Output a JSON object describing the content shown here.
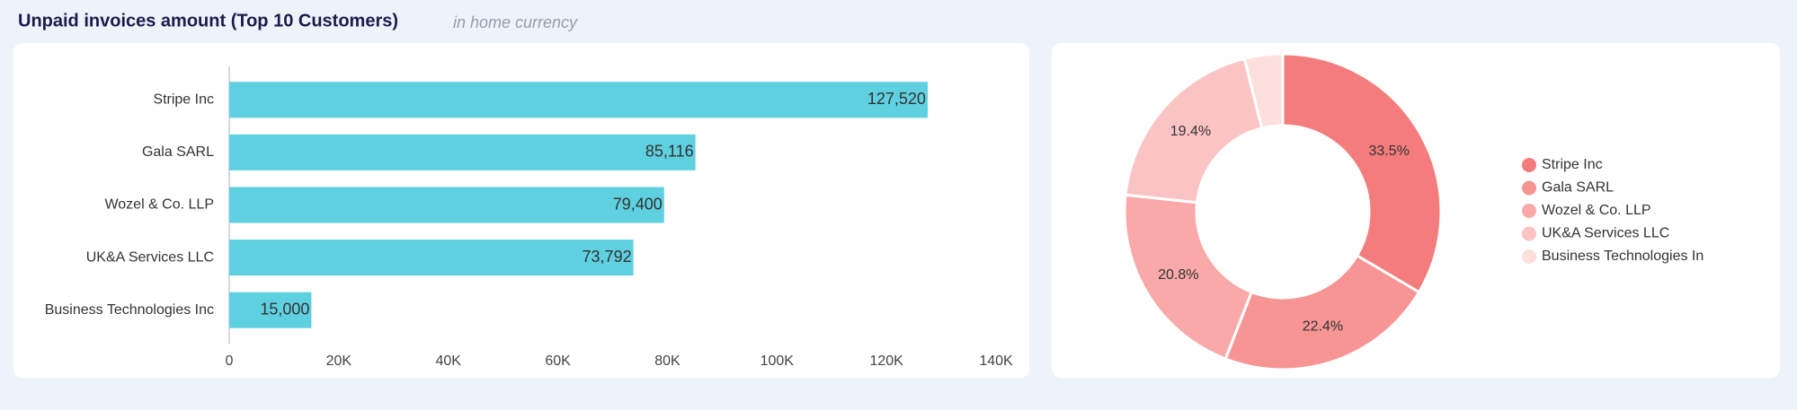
{
  "header": {
    "title": "Unpaid invoices amount (Top 10 Customers)",
    "subtitle": "in home currency"
  },
  "chart_data": [
    {
      "type": "bar",
      "orientation": "horizontal",
      "categories": [
        "Stripe Inc",
        "Gala SARL",
        "Wozel & Co. LLP",
        "UK&A Services LLC",
        "Business Technologies Inc"
      ],
      "values": [
        127520,
        85116,
        79400,
        73792,
        15000
      ],
      "value_labels": [
        "127,520",
        "85,116",
        "79,400",
        "73,792",
        "15,000"
      ],
      "color": "#5fd0df",
      "xlim": [
        0,
        140000
      ],
      "xticks": [
        0,
        {
          "value": 20000,
          "label": "20K"
        },
        {
          "value": 40000,
          "label": "40K"
        },
        {
          "value": 60000,
          "label": "60K"
        },
        {
          "value": 80000,
          "label": "80K"
        },
        {
          "value": 100000,
          "label": "100K"
        },
        {
          "value": 120000,
          "label": "120K"
        },
        {
          "value": 140000,
          "label": "140K"
        }
      ],
      "grid": false
    },
    {
      "type": "pie",
      "donut": true,
      "categories": [
        "Stripe Inc",
        "Gala SARL",
        "Wozel & Co. LLP",
        "UK&A Services LLC",
        "Business Technologies Inc"
      ],
      "values": [
        33.5,
        22.4,
        20.8,
        19.4,
        3.9
      ],
      "value_labels": [
        "33.5%",
        "22.4%",
        "20.8%",
        "19.4%",
        null
      ],
      "colors": [
        "#f47c7c",
        "#f79595",
        "#f9a9a9",
        "#fbc4c4",
        "#fde0dc"
      ],
      "legend": "right"
    }
  ]
}
